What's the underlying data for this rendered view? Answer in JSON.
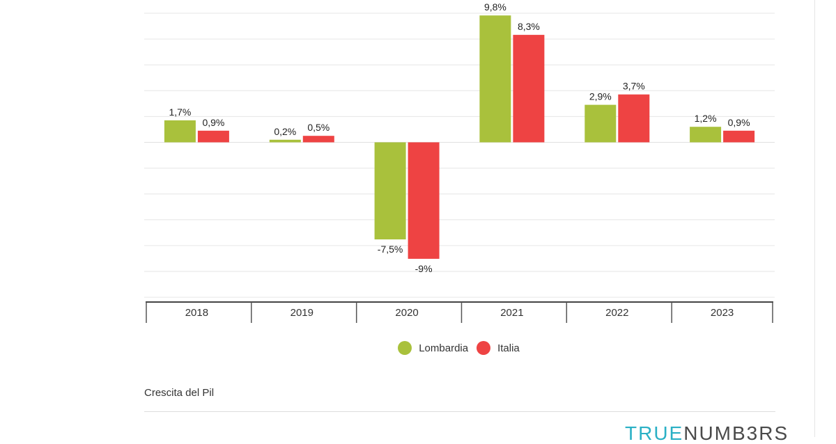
{
  "chart_data": {
    "type": "bar",
    "categories": [
      "2018",
      "2019",
      "2020",
      "2021",
      "2022",
      "2023"
    ],
    "series": [
      {
        "name": "Lombardia",
        "color": "#a9c13c",
        "values": [
          1.7,
          0.2,
          -7.5,
          9.8,
          2.9,
          1.2
        ],
        "labels": [
          "1,7%",
          "0,2%",
          "-7,5%",
          "9,8%",
          "2,9%",
          "1,2%"
        ]
      },
      {
        "name": "Italia",
        "color": "#ee4343",
        "values": [
          0.9,
          0.5,
          -9,
          8.3,
          3.7,
          0.9
        ],
        "labels": [
          "0,9%",
          "0,5%",
          "-9%",
          "8,3%",
          "3,7%",
          "0,9%"
        ]
      }
    ],
    "ylim": [
      -12,
      10
    ],
    "grid": true,
    "legend_position": "bottom-center"
  },
  "caption": "Crescita del Pil",
  "brand": {
    "part1": "TRUE",
    "part2": "NUMB3RS"
  }
}
